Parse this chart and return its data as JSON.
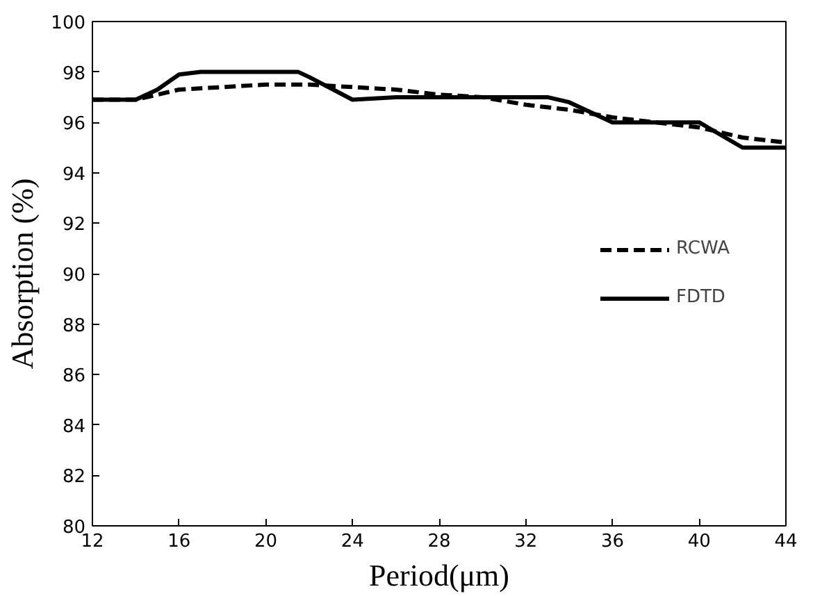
{
  "chart_data": {
    "type": "line",
    "xlabel": "Period(μm)",
    "ylabel": "Absorption (%)",
    "xlim": [
      12,
      44
    ],
    "ylim": [
      80,
      100
    ],
    "xticks": [
      12,
      16,
      20,
      24,
      28,
      32,
      36,
      40,
      44
    ],
    "yticks": [
      80,
      82,
      84,
      86,
      88,
      90,
      92,
      94,
      96,
      98,
      100
    ],
    "grid": false,
    "legend": "right",
    "marker": "none",
    "series": [
      {
        "name": "RCWA",
        "color": "#000000",
        "line_style": "dashed",
        "x": [
          12,
          14,
          16,
          18,
          20,
          22,
          24,
          26,
          28,
          30,
          32,
          34,
          36,
          38,
          40,
          42,
          44
        ],
        "values": [
          96.9,
          96.9,
          97.3,
          97.4,
          97.5,
          97.5,
          97.4,
          97.3,
          97.1,
          97.0,
          96.7,
          96.5,
          96.2,
          96.0,
          95.8,
          95.4,
          95.2
        ]
      },
      {
        "name": "FDTD",
        "color": "#000000",
        "line_style": "solid",
        "x": [
          12,
          14,
          15,
          16,
          17,
          20,
          21.5,
          22,
          24,
          26,
          30,
          33,
          34,
          36,
          38,
          40,
          42,
          44
        ],
        "values": [
          96.9,
          96.9,
          97.3,
          97.9,
          98.0,
          98.0,
          98.0,
          97.8,
          96.9,
          97.0,
          97.0,
          97.0,
          96.8,
          96.0,
          96.0,
          96.0,
          95.0,
          95.0
        ]
      }
    ]
  }
}
